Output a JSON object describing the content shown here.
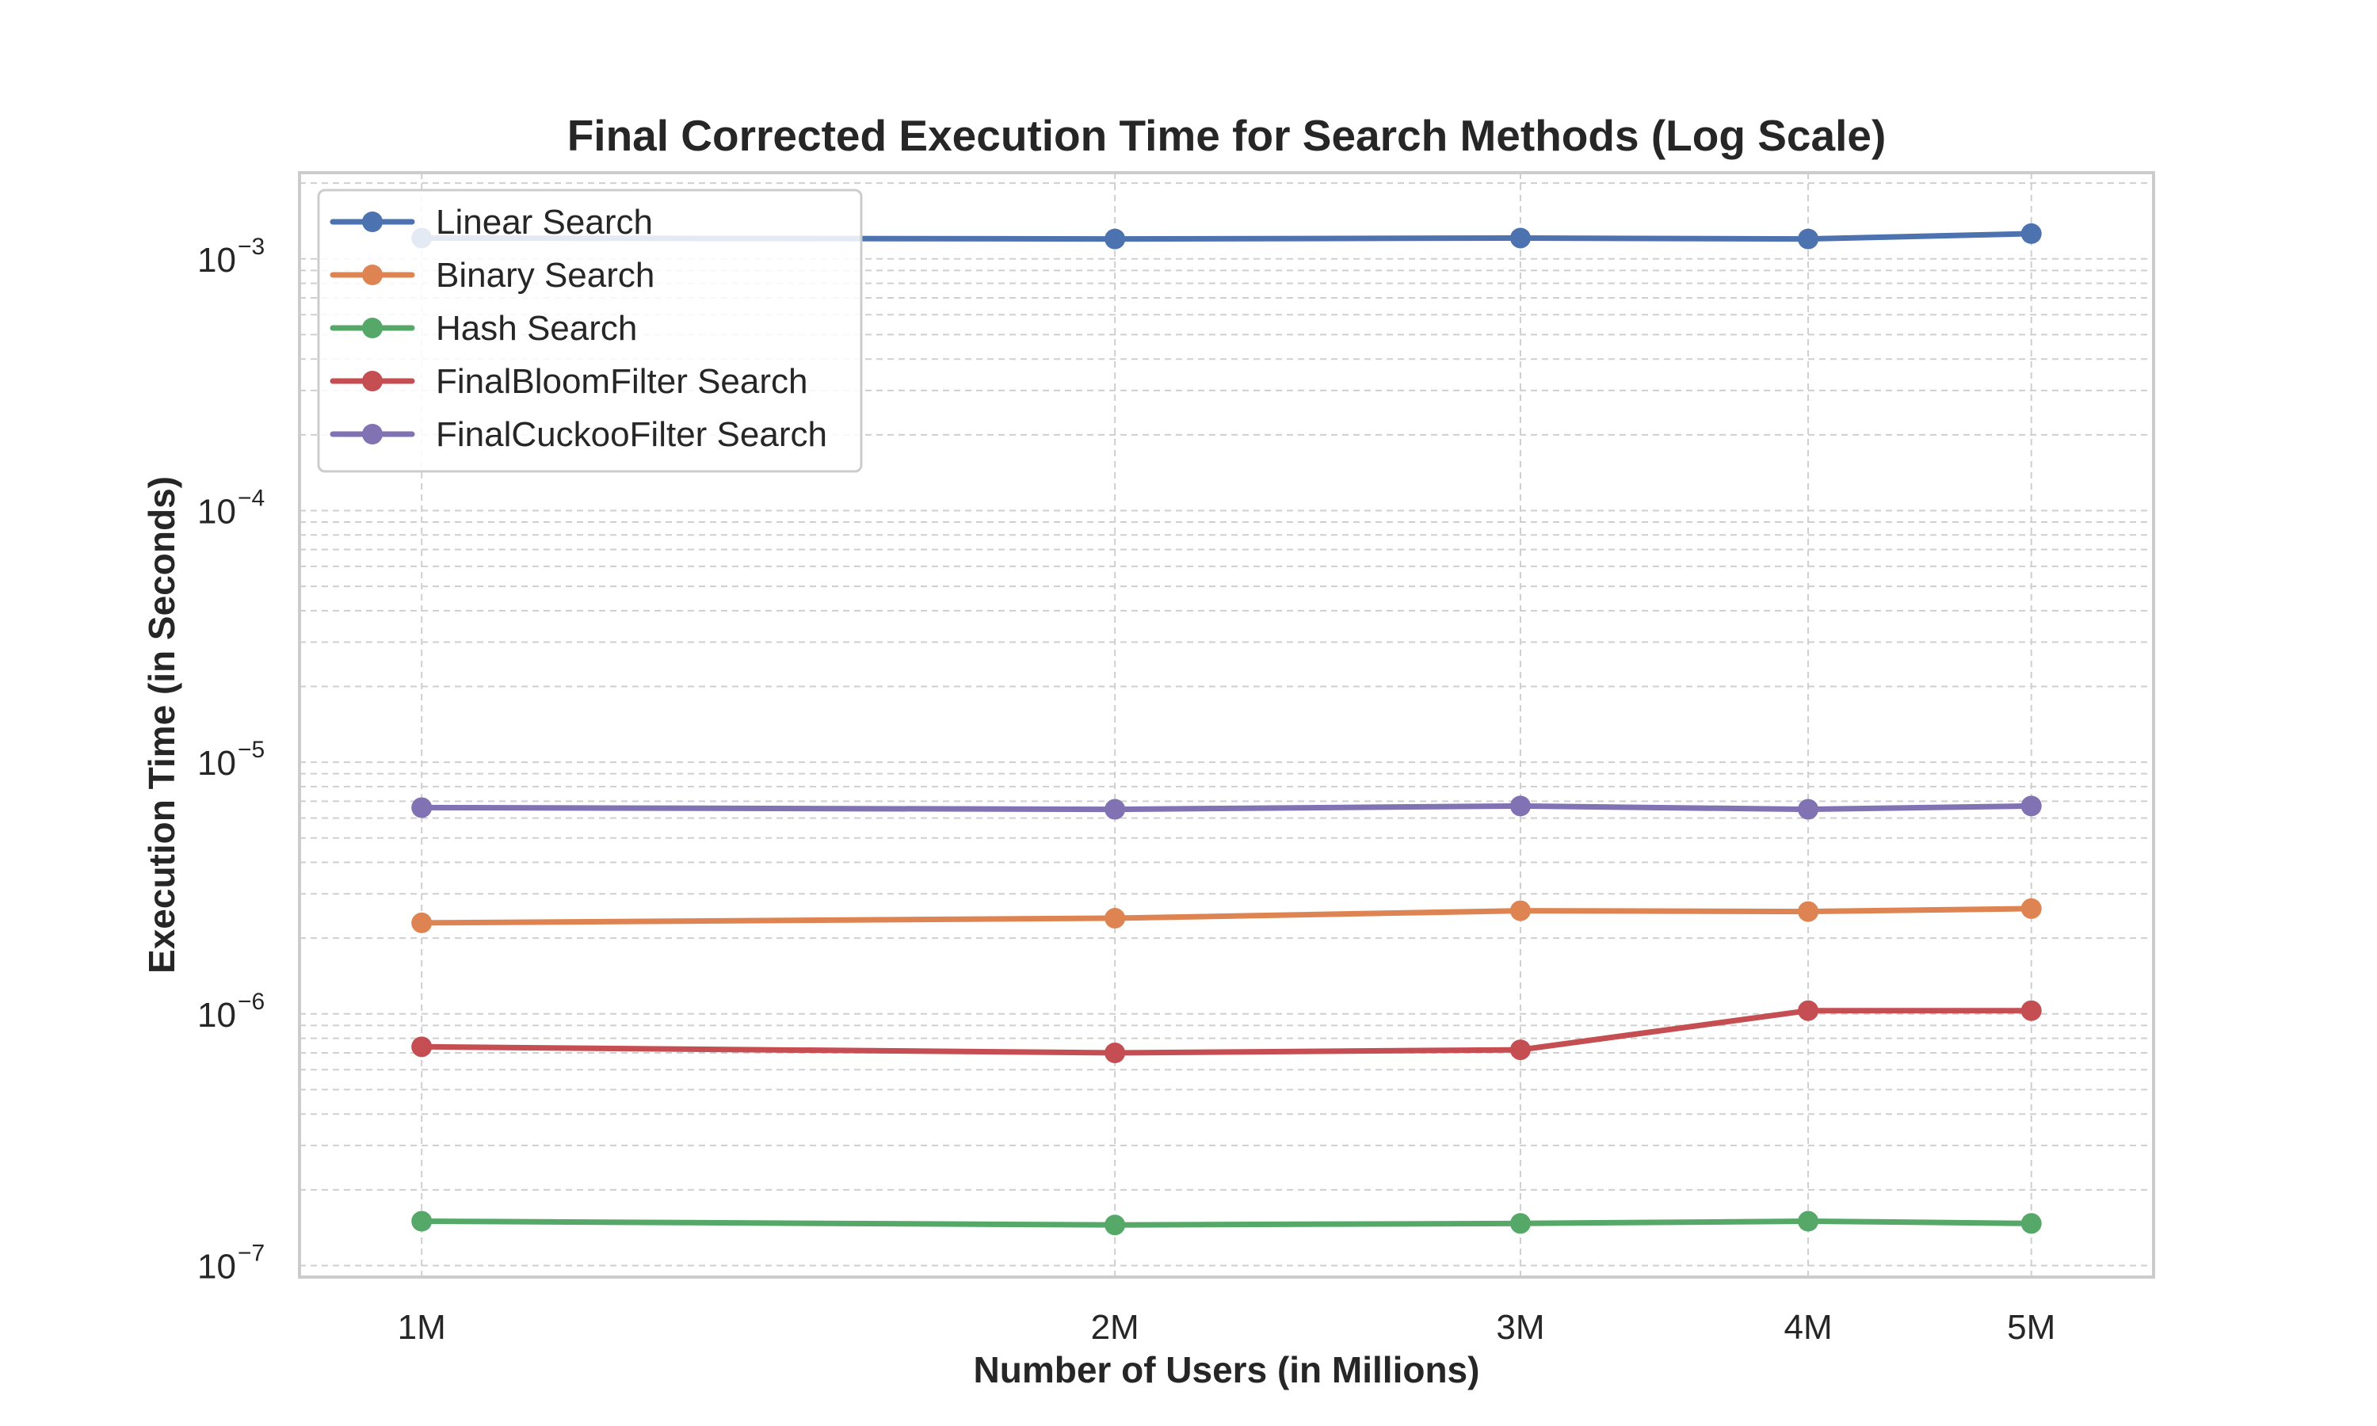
{
  "chart_data": {
    "type": "line",
    "title": "Final Corrected Execution Time for Search Methods (Log Scale)",
    "xlabel": "Number of Users (in Millions)",
    "ylabel": "Execution Time (in Seconds)",
    "x": [
      1,
      2,
      3,
      4,
      5
    ],
    "x_scale": "log",
    "x_tick_labels": [
      "1M",
      "2M",
      "3M",
      "4M",
      "5M"
    ],
    "y_scale": "log",
    "y_ticks": [
      {
        "base": "10",
        "exp": "−7",
        "value": 1e-07
      },
      {
        "base": "10",
        "exp": "−6",
        "value": 1e-06
      },
      {
        "base": "10",
        "exp": "−5",
        "value": 1e-05
      },
      {
        "base": "10",
        "exp": "−4",
        "value": 0.0001
      },
      {
        "base": "10",
        "exp": "−3",
        "value": 0.001
      }
    ],
    "ylim": [
      9e-08,
      0.0022
    ],
    "xlim": [
      0.885,
      5.65
    ],
    "grid": true,
    "legend_position": "top-left",
    "series": [
      {
        "name": "Linear Search",
        "color": "#4c72b0",
        "values": [
          0.00121,
          0.0012,
          0.00121,
          0.0012,
          0.00126
        ]
      },
      {
        "name": "Binary Search",
        "color": "#dd8452",
        "values": [
          2.3e-06,
          2.4e-06,
          2.57e-06,
          2.55e-06,
          2.62e-06
        ]
      },
      {
        "name": "Hash Search",
        "color": "#55a868",
        "values": [
          1.5e-07,
          1.45e-07,
          1.47e-07,
          1.5e-07,
          1.47e-07
        ]
      },
      {
        "name": "FinalBloomFilter Search",
        "color": "#c44e52",
        "values": [
          7.4e-07,
          7e-07,
          7.2e-07,
          1.03e-06,
          1.03e-06
        ]
      },
      {
        "name": "FinalCuckooFilter Search",
        "color": "#8172b3",
        "values": [
          6.6e-06,
          6.5e-06,
          6.7e-06,
          6.5e-06,
          6.7e-06
        ]
      }
    ]
  }
}
